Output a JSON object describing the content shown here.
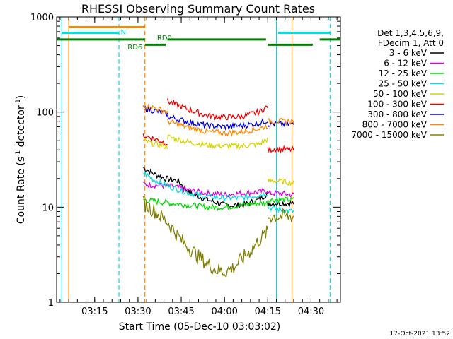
{
  "chart_data": {
    "type": "line",
    "title": "RHESSI Observing Summary Count Rates",
    "xlabel": "Start Time (05-Dec-10 03:03:02)",
    "ylabel_main": "Count Rate (s",
    "ylabel_sup1": "-1",
    "ylabel_mid": " detector",
    "ylabel_sup2": "-1",
    "ylabel_end": ")",
    "y_scale": "log",
    "ylim": [
      1,
      1000
    ],
    "xlim_minutes": [
      3.03,
      4.67
    ],
    "x_ticks": [
      {
        "t": 3.25,
        "label": "03:15"
      },
      {
        "t": 3.5,
        "label": "03:30"
      },
      {
        "t": 3.75,
        "label": "03:45"
      },
      {
        "t": 4.0,
        "label": "04:00"
      },
      {
        "t": 4.25,
        "label": "04:15"
      },
      {
        "t": 4.5,
        "label": "04:30"
      }
    ],
    "y_ticks": [
      {
        "v": 1,
        "label": "1"
      },
      {
        "v": 10,
        "label": "10"
      },
      {
        "v": 100,
        "label": "100"
      },
      {
        "v": 1000,
        "label": "1000"
      }
    ],
    "legend_header": [
      "Det 1,3,4,5,6,9,",
      "FDecim 1, Att 0"
    ],
    "legend_position": "top-right outside plot",
    "series": [
      {
        "name": "3 - 6 keV",
        "color": "#000000",
        "segments": [
          {
            "t": [
              3.53,
              3.6,
              3.66,
              3.73,
              3.8,
              3.9,
              4.0,
              4.1,
              4.2,
              4.25
            ],
            "v": [
              26,
              22,
              20,
              19,
              14,
              12,
              10.5,
              10.5,
              12,
              14
            ]
          },
          {
            "t": [
              4.25,
              4.3,
              4.4
            ],
            "v": [
              11,
              11,
              11
            ]
          }
        ]
      },
      {
        "name": "6 - 12 keV",
        "color": "#e000e0",
        "segments": [
          {
            "t": [
              3.53,
              3.6,
              3.7,
              3.8,
              3.9,
              4.0,
              4.1,
              4.2,
              4.25
            ],
            "v": [
              17.5,
              17,
              16.5,
              15,
              14,
              13.5,
              14,
              14.5,
              15
            ]
          },
          {
            "t": [
              4.25,
              4.3,
              4.4
            ],
            "v": [
              14,
              14,
              13.5
            ]
          }
        ]
      },
      {
        "name": "12 - 25 keV",
        "color": "#00dd00",
        "segments": [
          {
            "t": [
              3.53,
              3.6,
              3.7,
              3.8,
              3.9,
              4.0,
              4.1,
              4.2,
              4.25
            ],
            "v": [
              12,
              11.5,
              11,
              10.5,
              10,
              10,
              10.5,
              11,
              11
            ]
          },
          {
            "t": [
              4.25,
              4.3,
              4.4
            ],
            "v": [
              12,
              12,
              12
            ]
          }
        ]
      },
      {
        "name": "25 - 50 keV",
        "color": "#00e0e0",
        "segments": [
          {
            "t": [
              3.53,
              3.6,
              3.7,
              3.8,
              3.9,
              4.0,
              4.1,
              4.2,
              4.25
            ],
            "v": [
              23,
              19,
              16,
              14,
              13,
              12.5,
              12.5,
              13.5,
              14
            ]
          },
          {
            "t": [
              4.25,
              4.3,
              4.4
            ],
            "v": [
              10,
              9.5,
              9
            ]
          }
        ]
      },
      {
        "name": "50 - 100 keV",
        "color": "#d4d400",
        "segments": [
          {
            "t": [
              3.53,
              3.6,
              3.67
            ],
            "v": [
              50,
              46,
              43
            ]
          },
          {
            "t": [
              3.67,
              3.8,
              3.9,
              4.0,
              4.1,
              4.2,
              4.25
            ],
            "v": [
              55,
              48,
              45,
              44,
              44,
              46,
              52
            ]
          },
          {
            "t": [
              4.25,
              4.3,
              4.4
            ],
            "v": [
              19,
              19,
              18
            ]
          }
        ]
      },
      {
        "name": "100 - 300 keV",
        "color": "#ee0000",
        "segments": [
          {
            "t": [
              3.53,
              3.6,
              3.67
            ],
            "v": [
              57,
              52,
              47
            ]
          },
          {
            "t": [
              3.67,
              3.8,
              3.9,
              4.0,
              4.1,
              4.2,
              4.25
            ],
            "v": [
              130,
              105,
              92,
              88,
              90,
              100,
              115
            ]
          },
          {
            "t": [
              4.25,
              4.3,
              4.4
            ],
            "v": [
              40,
              41,
              40
            ]
          }
        ]
      },
      {
        "name": "300 - 800 keV",
        "color": "#0000dd",
        "segments": [
          {
            "t": [
              3.53,
              3.6,
              3.67
            ],
            "v": [
              110,
              103,
              95
            ]
          },
          {
            "t": [
              3.67,
              3.8,
              3.9,
              4.0,
              4.1,
              4.2,
              4.25
            ],
            "v": [
              90,
              78,
              72,
              70,
              72,
              76,
              82
            ]
          },
          {
            "t": [
              4.25,
              4.3,
              4.4
            ],
            "v": [
              75,
              75,
              74
            ]
          }
        ]
      },
      {
        "name": "800 - 7000 keV",
        "color": "#ff8800",
        "segments": [
          {
            "t": [
              3.53,
              3.6,
              3.67
            ],
            "v": [
              118,
              110,
              100
            ]
          },
          {
            "t": [
              3.67,
              3.8,
              3.9,
              4.0,
              4.1,
              4.2,
              4.25
            ],
            "v": [
              80,
              68,
              62,
              60,
              62,
              67,
              72
            ]
          },
          {
            "t": [
              4.25,
              4.3,
              4.4
            ],
            "v": [
              80,
              80,
              80
            ]
          }
        ]
      },
      {
        "name": "7000 - 15000 keV",
        "color": "#808000",
        "segments": [
          {
            "t": [
              3.53,
              3.6,
              3.67,
              3.75,
              3.85,
              3.95,
              4.0,
              4.05,
              4.15,
              4.2,
              4.25
            ],
            "v": [
              11,
              9,
              7,
              4.5,
              3,
              2.2,
              2.1,
              2.3,
              3.5,
              4.5,
              5.5
            ]
          },
          {
            "t": [
              4.25,
              4.3,
              4.4
            ],
            "v": [
              8,
              8,
              8
            ]
          }
        ]
      }
    ],
    "annotations": {
      "vlines": [
        {
          "t": 3.06,
          "color": "#00e0e0",
          "dash": false
        },
        {
          "t": 3.1,
          "color": "#ff8800",
          "dash": false
        },
        {
          "t": 3.39,
          "color": "#00e0e0",
          "dash": true
        },
        {
          "t": 3.54,
          "color": "#ff8800",
          "dash": true
        },
        {
          "t": 4.3,
          "color": "#00e0e0",
          "dash": false
        },
        {
          "t": 4.39,
          "color": "#ff8800",
          "dash": false
        },
        {
          "t": 4.61,
          "color": "#00e0e0",
          "dash": true
        }
      ],
      "hbars": [
        {
          "t0": 3.1,
          "t1": 3.54,
          "v": 780,
          "color": "#ff8800"
        },
        {
          "t0": 3.06,
          "t1": 3.39,
          "v": 680,
          "color": "#00e0e0"
        },
        {
          "t0": 4.31,
          "t1": 4.61,
          "v": 680,
          "color": "#00e0e0"
        },
        {
          "t0": 3.03,
          "t1": 3.54,
          "v": 580,
          "color": "#008000"
        },
        {
          "t0": 3.54,
          "t1": 3.66,
          "v": 510,
          "color": "#008000"
        },
        {
          "t0": 3.67,
          "t1": 4.24,
          "v": 580,
          "color": "#008000"
        },
        {
          "t0": 4.25,
          "t1": 4.51,
          "v": 510,
          "color": "#008000"
        },
        {
          "t0": 4.55,
          "t1": 4.67,
          "v": 580,
          "color": "#008000"
        }
      ],
      "labels": [
        {
          "text": "N",
          "t": 3.4,
          "v": 660,
          "color": "#00e0e0"
        },
        {
          "text": "RD0",
          "t": 3.61,
          "v": 570,
          "color": "#008000"
        },
        {
          "text": "RD6",
          "t": 3.44,
          "v": 455,
          "color": "#008000"
        }
      ]
    }
  },
  "footer": {
    "timestamp": "17-Oct-2021 13:52"
  }
}
